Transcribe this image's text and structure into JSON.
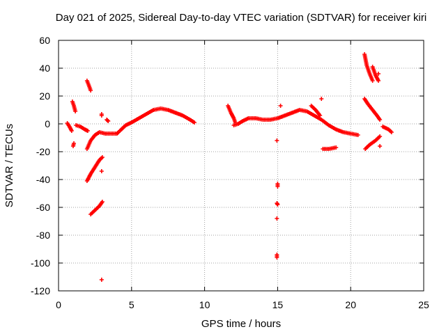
{
  "chart_data": {
    "type": "scatter",
    "title": "Day 021 of 2025, Sidereal Day-to-day VTEC variation (SDTVAR) for receiver kiri",
    "xlabel": "GPS time / hours",
    "ylabel": "SDTVAR / TECUs",
    "xlim": [
      0,
      25
    ],
    "ylim": [
      -120,
      60
    ],
    "xticks": [
      0,
      5,
      10,
      15,
      20,
      25
    ],
    "yticks": [
      -120,
      -100,
      -80,
      -60,
      -40,
      -20,
      0,
      20,
      40,
      60
    ],
    "grid": true,
    "marker": "+",
    "series": [
      {
        "name": "SDTVAR",
        "color": "#ff0000",
        "segments": [
          [
            [
              0.6,
              0.5
            ],
            [
              0.75,
              -2
            ],
            [
              0.9,
              -5
            ]
          ],
          [
            [
              0.95,
              16
            ],
            [
              1.05,
              13
            ],
            [
              1.15,
              9
            ]
          ],
          [
            [
              1.0,
              -16
            ],
            [
              1.05,
              -14
            ]
          ],
          [
            [
              1.2,
              -1
            ],
            [
              1.5,
              -2
            ],
            [
              1.8,
              -4
            ],
            [
              2.0,
              -5
            ]
          ],
          [
            [
              1.95,
              31
            ],
            [
              2.1,
              27
            ],
            [
              2.2,
              24
            ]
          ],
          [
            [
              1.95,
              -18
            ],
            [
              2.2,
              -12
            ],
            [
              2.5,
              -8
            ],
            [
              2.8,
              -6
            ],
            [
              3.2,
              -7
            ],
            [
              3.6,
              -7
            ],
            [
              4.0,
              -7
            ],
            [
              4.1,
              -6
            ]
          ],
          [
            [
              1.95,
              -41
            ],
            [
              2.2,
              -36
            ],
            [
              2.5,
              -31
            ],
            [
              2.8,
              -26
            ],
            [
              3.0,
              -24
            ]
          ],
          [
            [
              2.2,
              -65
            ],
            [
              2.5,
              -62
            ],
            [
              2.8,
              -59
            ],
            [
              3.0,
              -56
            ]
          ],
          [
            [
              2.95,
              7
            ],
            [
              2.95,
              6
            ]
          ],
          [
            [
              2.95,
              -34
            ]
          ],
          [
            [
              2.95,
              -112
            ]
          ],
          [
            [
              3.3,
              3
            ],
            [
              3.4,
              2
            ]
          ],
          [
            [
              4.2,
              -5
            ],
            [
              4.6,
              -1
            ],
            [
              5.0,
              1
            ],
            [
              5.5,
              4
            ],
            [
              6.0,
              7
            ],
            [
              6.5,
              10
            ],
            [
              7.0,
              11
            ],
            [
              7.5,
              10
            ],
            [
              8.0,
              8
            ],
            [
              8.5,
              6
            ],
            [
              9.0,
              3
            ],
            [
              9.3,
              1
            ]
          ],
          [
            [
              11.6,
              13
            ],
            [
              11.8,
              8
            ],
            [
              12.0,
              4
            ],
            [
              12.1,
              1
            ]
          ],
          [
            [
              12.0,
              -1
            ],
            [
              12.3,
              0
            ],
            [
              12.6,
              2
            ],
            [
              13.0,
              4
            ],
            [
              13.5,
              4
            ],
            [
              14.0,
              3
            ],
            [
              14.5,
              3
            ],
            [
              15.0,
              4
            ],
            [
              15.5,
              6
            ],
            [
              16.0,
              8
            ],
            [
              16.5,
              10
            ],
            [
              17.0,
              9
            ],
            [
              17.5,
              6
            ],
            [
              18.0,
              3
            ],
            [
              18.5,
              -1
            ],
            [
              19.0,
              -4
            ],
            [
              19.5,
              -6
            ],
            [
              20.0,
              -7
            ],
            [
              20.5,
              -8
            ]
          ],
          [
            [
              14.95,
              -12
            ]
          ],
          [
            [
              15.0,
              -43
            ],
            [
              15.0,
              -45
            ]
          ],
          [
            [
              15.0,
              -58
            ],
            [
              14.95,
              -57
            ]
          ],
          [
            [
              14.95,
              -68
            ]
          ],
          [
            [
              14.95,
              -94
            ],
            [
              14.95,
              -96
            ]
          ],
          [
            [
              15.2,
              13
            ]
          ],
          [
            [
              17.3,
              13
            ],
            [
              17.6,
              10
            ],
            [
              17.9,
              6
            ]
          ],
          [
            [
              18.0,
              18
            ]
          ],
          [
            [
              18.1,
              -18
            ],
            [
              18.5,
              -18
            ],
            [
              19.0,
              -17
            ]
          ],
          [
            [
              20.95,
              50
            ],
            [
              21.1,
              42
            ],
            [
              21.3,
              36
            ],
            [
              21.5,
              31
            ]
          ],
          [
            [
              21.5,
              41
            ],
            [
              21.7,
              35
            ],
            [
              21.9,
              31
            ]
          ],
          [
            [
              20.95,
              18
            ],
            [
              21.2,
              14
            ],
            [
              21.5,
              10
            ],
            [
              21.8,
              6
            ],
            [
              22.0,
              3
            ]
          ],
          [
            [
              21.0,
              -18
            ],
            [
              21.3,
              -15
            ],
            [
              21.7,
              -12
            ],
            [
              22.0,
              -9
            ]
          ],
          [
            [
              21.9,
              36
            ]
          ],
          [
            [
              22.0,
              -16
            ]
          ],
          [
            [
              22.2,
              -2
            ],
            [
              22.6,
              -4
            ],
            [
              22.8,
              -6
            ]
          ]
        ]
      }
    ]
  }
}
